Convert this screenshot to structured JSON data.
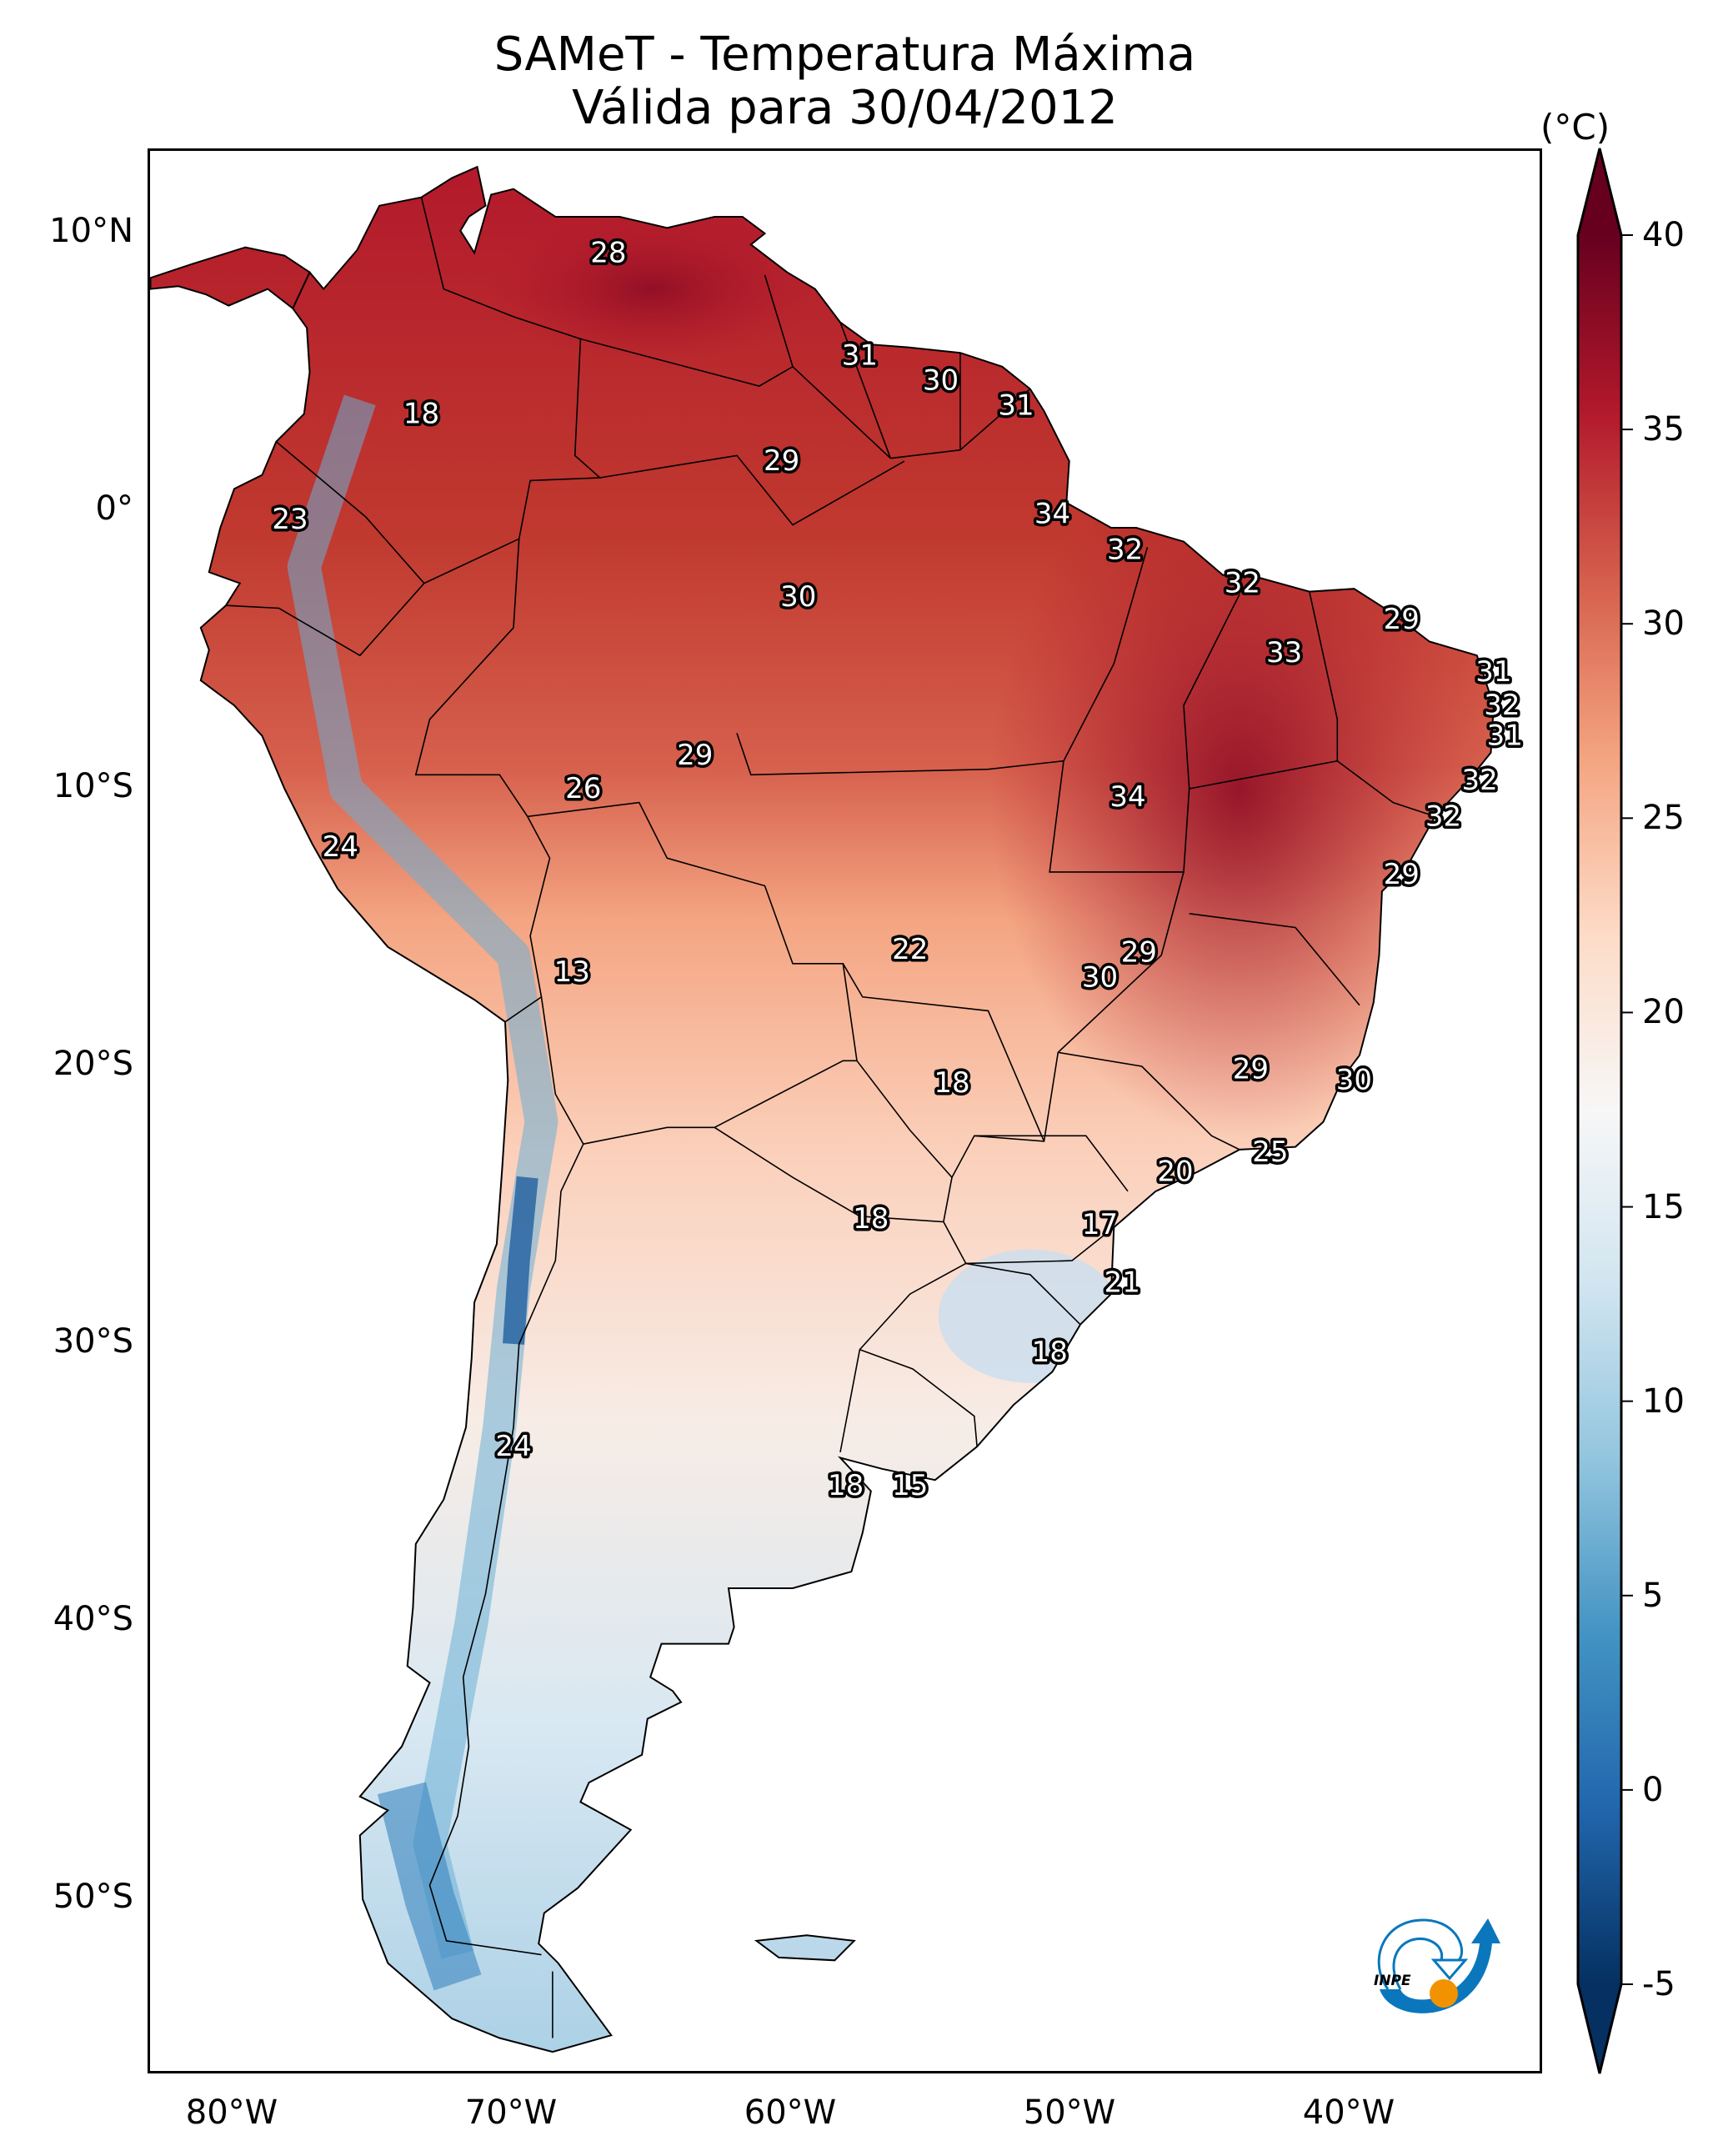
{
  "title": {
    "line1": "SAMeT - Temperatura Máxima",
    "line2": "Válida para 30/04/2012"
  },
  "chart_data": {
    "type": "heatmap",
    "title": "SAMeT - Temperatura Máxima",
    "subtitle": "Válida para 30/04/2012",
    "variable": "Maximum temperature",
    "units": "(°C)",
    "lon_range": [
      -83,
      -33
    ],
    "lat_range": [
      -56.3,
      13
    ],
    "lat_ticks": [
      "10°N",
      "0°",
      "10°S",
      "20°S",
      "30°S",
      "40°S",
      "50°S"
    ],
    "lat_tick_values": [
      10,
      0,
      -10,
      -20,
      -30,
      -40,
      -50
    ],
    "lon_ticks": [
      "80°W",
      "70°W",
      "60°W",
      "50°W",
      "40°W"
    ],
    "lon_tick_values": [
      -80,
      -70,
      -60,
      -50,
      -40
    ],
    "colorbar": {
      "label": "(°C)",
      "min": -5,
      "max": 40,
      "extend": "both",
      "colormap": "RdBu_r",
      "ticks": [
        40,
        35,
        30,
        25,
        20,
        15,
        10,
        5,
        0,
        -5
      ],
      "tick_labels": [
        "40",
        "35",
        "30",
        "25",
        "20",
        "15",
        "10",
        "5",
        "0",
        "-5"
      ],
      "colors": [
        "#053061",
        "#2166ac",
        "#4393c3",
        "#92c5de",
        "#d1e5f0",
        "#f7f7f7",
        "#fddbc7",
        "#f4a582",
        "#d6604d",
        "#b2182b",
        "#67001f"
      ]
    },
    "point_labels": [
      {
        "value": "28",
        "lon": -66.6,
        "lat": 9.3
      },
      {
        "value": "31",
        "lon": -57.6,
        "lat": 5.6
      },
      {
        "value": "30",
        "lon": -54.7,
        "lat": 4.7
      },
      {
        "value": "31",
        "lon": -52.0,
        "lat": 3.8
      },
      {
        "value": "18",
        "lon": -73.3,
        "lat": 3.5
      },
      {
        "value": "29",
        "lon": -60.4,
        "lat": 1.8
      },
      {
        "value": "23",
        "lon": -78.0,
        "lat": -0.3
      },
      {
        "value": "34",
        "lon": -50.7,
        "lat": -0.1
      },
      {
        "value": "32",
        "lon": -48.1,
        "lat": -1.4
      },
      {
        "value": "30",
        "lon": -59.8,
        "lat": -3.1
      },
      {
        "value": "32",
        "lon": -43.9,
        "lat": -2.6
      },
      {
        "value": "29",
        "lon": -38.2,
        "lat": -3.9
      },
      {
        "value": "33",
        "lon": -42.4,
        "lat": -5.1
      },
      {
        "value": "31",
        "lon": -34.9,
        "lat": -5.8
      },
      {
        "value": "32",
        "lon": -34.6,
        "lat": -7.0
      },
      {
        "value": "31",
        "lon": -34.5,
        "lat": -8.1
      },
      {
        "value": "29",
        "lon": -63.5,
        "lat": -8.8
      },
      {
        "value": "26",
        "lon": -67.5,
        "lat": -10.0
      },
      {
        "value": "34",
        "lon": -48.0,
        "lat": -10.3
      },
      {
        "value": "32",
        "lon": -35.4,
        "lat": -9.7
      },
      {
        "value": "24",
        "lon": -76.2,
        "lat": -12.1
      },
      {
        "value": "32",
        "lon": -36.7,
        "lat": -11.0
      },
      {
        "value": "29",
        "lon": -38.2,
        "lat": -13.1
      },
      {
        "value": "22",
        "lon": -55.8,
        "lat": -15.8
      },
      {
        "value": "29",
        "lon": -47.6,
        "lat": -15.9
      },
      {
        "value": "13",
        "lon": -67.9,
        "lat": -16.6
      },
      {
        "value": "30",
        "lon": -49.0,
        "lat": -16.8
      },
      {
        "value": "18",
        "lon": -54.3,
        "lat": -20.6
      },
      {
        "value": "29",
        "lon": -43.6,
        "lat": -20.1
      },
      {
        "value": "30",
        "lon": -39.9,
        "lat": -20.5
      },
      {
        "value": "25",
        "lon": -42.9,
        "lat": -23.1
      },
      {
        "value": "20",
        "lon": -46.3,
        "lat": -23.8
      },
      {
        "value": "18",
        "lon": -57.2,
        "lat": -25.5
      },
      {
        "value": "17",
        "lon": -49.0,
        "lat": -25.7
      },
      {
        "value": "21",
        "lon": -48.2,
        "lat": -27.8
      },
      {
        "value": "18",
        "lon": -50.8,
        "lat": -30.3
      },
      {
        "value": "24",
        "lon": -70.0,
        "lat": -33.7
      },
      {
        "value": "18",
        "lon": -58.1,
        "lat": -35.1
      },
      {
        "value": "15",
        "lon": -55.8,
        "lat": -35.1
      }
    ]
  },
  "logo": {
    "text": "INPE",
    "colors": {
      "blue": "#0a77bd",
      "orange": "#f39200"
    }
  }
}
